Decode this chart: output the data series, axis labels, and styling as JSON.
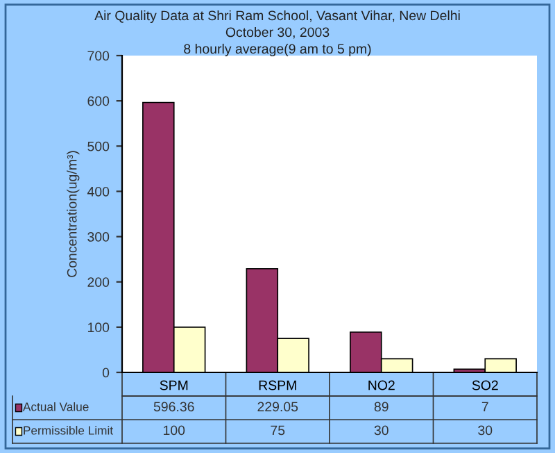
{
  "chart_data": {
    "type": "bar",
    "title": "Air Quality Data at Shri Ram School, Vasant Vihar, New Delhi",
    "subtitle": "October 30, 2003",
    "annotations": [
      "8 hourly average(9 am to 5 pm)"
    ],
    "ylabel": "Concentration(ug/m³)",
    "categories": [
      "SPM",
      "RSPM",
      "NO2",
      "SO2"
    ],
    "series": [
      {
        "name": "Actual Value",
        "color": "#993366",
        "values": [
          596.36,
          229.05,
          89,
          7
        ]
      },
      {
        "name": "Permissible Limit",
        "color": "#ffffcc",
        "values": [
          100,
          75,
          30,
          30
        ]
      }
    ],
    "ylim": [
      0,
      700
    ],
    "yticks": [
      0,
      100,
      200,
      300,
      400,
      500,
      600,
      700
    ],
    "grid": false,
    "data_labels": true,
    "legend": "bottom"
  }
}
